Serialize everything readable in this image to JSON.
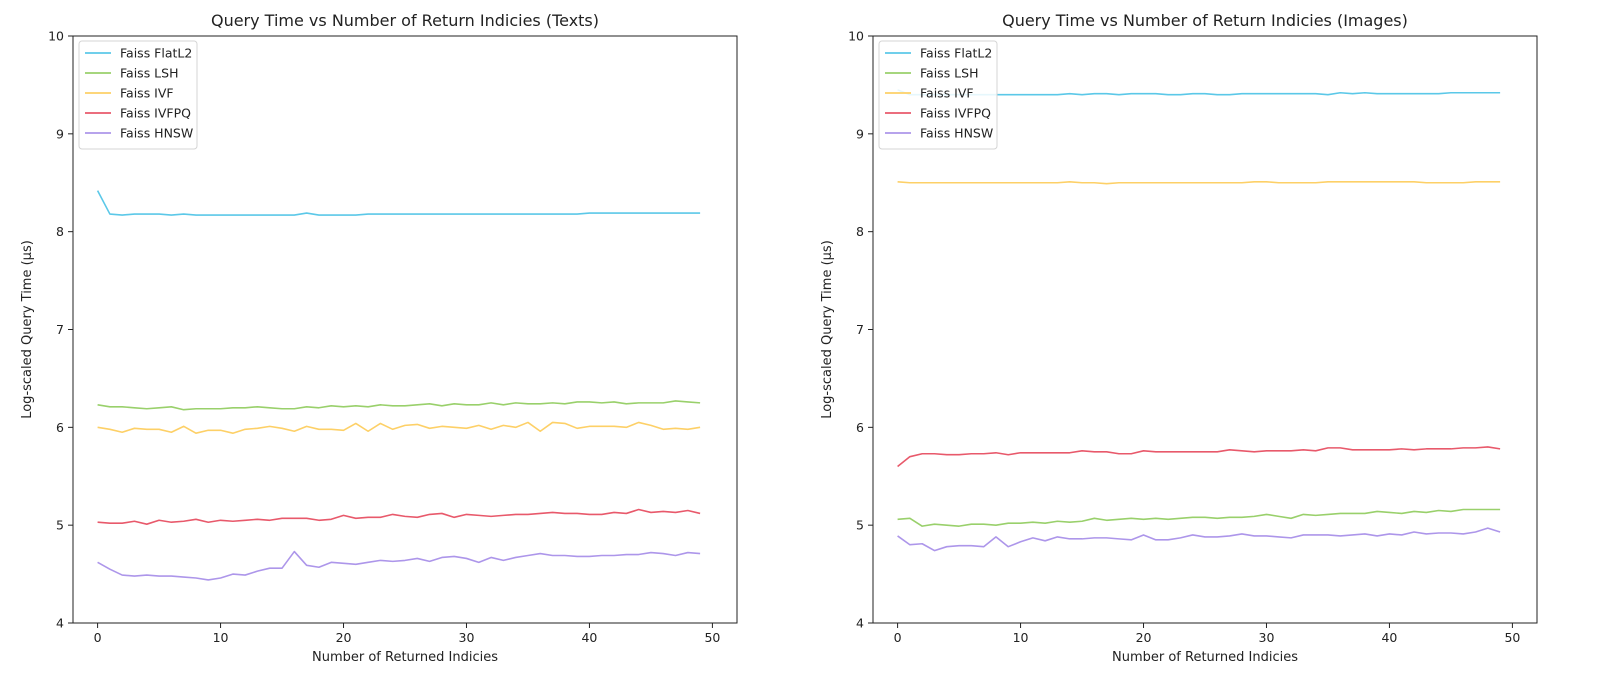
{
  "chart_data": [
    {
      "type": "line",
      "title": "Query Time vs Number of Return Indicies (Texts)",
      "xlabel": "Number of Returned Indicies",
      "ylabel": "Log-scaled Query Time (μs)",
      "xlim": [
        -2,
        52
      ],
      "ylim": [
        4,
        10
      ],
      "xticks": [
        "0",
        "10",
        "20",
        "30",
        "40",
        "50"
      ],
      "yticks": [
        "4",
        "5",
        "6",
        "7",
        "8",
        "9",
        "10"
      ],
      "grid": false,
      "legend_position": "top-left",
      "series": [
        {
          "name": "Faiss FlatL2",
          "color": "#5bc8e8",
          "values": [
            8.42,
            8.18,
            8.17,
            8.18,
            8.18,
            8.18,
            8.17,
            8.18,
            8.17,
            8.17,
            8.17,
            8.17,
            8.17,
            8.17,
            8.17,
            8.17,
            8.17,
            8.19,
            8.17,
            8.17,
            8.17,
            8.17,
            8.18,
            8.18,
            8.18,
            8.18,
            8.18,
            8.18,
            8.18,
            8.18,
            8.18,
            8.18,
            8.18,
            8.18,
            8.18,
            8.18,
            8.18,
            8.18,
            8.18,
            8.18,
            8.19,
            8.19,
            8.19,
            8.19,
            8.19,
            8.19,
            8.19,
            8.19,
            8.19,
            8.19
          ]
        },
        {
          "name": "Faiss LSH",
          "color": "#99d06b",
          "values": [
            6.23,
            6.21,
            6.21,
            6.2,
            6.19,
            6.2,
            6.21,
            6.18,
            6.19,
            6.19,
            6.19,
            6.2,
            6.2,
            6.21,
            6.2,
            6.19,
            6.19,
            6.21,
            6.2,
            6.22,
            6.21,
            6.22,
            6.21,
            6.23,
            6.22,
            6.22,
            6.23,
            6.24,
            6.22,
            6.24,
            6.23,
            6.23,
            6.25,
            6.23,
            6.25,
            6.24,
            6.24,
            6.25,
            6.24,
            6.26,
            6.26,
            6.25,
            6.26,
            6.24,
            6.25,
            6.25,
            6.25,
            6.27,
            6.26,
            6.25
          ]
        },
        {
          "name": "Faiss IVF",
          "color": "#fdd067",
          "values": [
            6.0,
            5.98,
            5.95,
            5.99,
            5.98,
            5.98,
            5.95,
            6.01,
            5.94,
            5.97,
            5.97,
            5.94,
            5.98,
            5.99,
            6.01,
            5.99,
            5.96,
            6.01,
            5.98,
            5.98,
            5.97,
            6.04,
            5.96,
            6.04,
            5.98,
            6.02,
            6.03,
            5.99,
            6.01,
            6.0,
            5.99,
            6.02,
            5.98,
            6.02,
            6.0,
            6.05,
            5.96,
            6.05,
            6.04,
            5.99,
            6.01,
            6.01,
            6.01,
            6.0,
            6.05,
            6.02,
            5.98,
            5.99,
            5.98,
            6.0
          ]
        },
        {
          "name": "Faiss IVFPQ",
          "color": "#e8596b",
          "values": [
            5.03,
            5.02,
            5.02,
            5.04,
            5.01,
            5.05,
            5.03,
            5.04,
            5.06,
            5.03,
            5.05,
            5.04,
            5.05,
            5.06,
            5.05,
            5.07,
            5.07,
            5.07,
            5.05,
            5.06,
            5.1,
            5.07,
            5.08,
            5.08,
            5.11,
            5.09,
            5.08,
            5.11,
            5.12,
            5.08,
            5.11,
            5.1,
            5.09,
            5.1,
            5.11,
            5.11,
            5.12,
            5.13,
            5.12,
            5.12,
            5.11,
            5.11,
            5.13,
            5.12,
            5.16,
            5.13,
            5.14,
            5.13,
            5.15,
            5.12
          ]
        },
        {
          "name": "Faiss HNSW",
          "color": "#ad96ea",
          "values": [
            4.62,
            4.55,
            4.49,
            4.48,
            4.49,
            4.48,
            4.48,
            4.47,
            4.46,
            4.44,
            4.46,
            4.5,
            4.49,
            4.53,
            4.56,
            4.56,
            4.73,
            4.59,
            4.57,
            4.62,
            4.61,
            4.6,
            4.62,
            4.64,
            4.63,
            4.64,
            4.66,
            4.63,
            4.67,
            4.68,
            4.66,
            4.62,
            4.67,
            4.64,
            4.67,
            4.69,
            4.71,
            4.69,
            4.69,
            4.68,
            4.68,
            4.69,
            4.69,
            4.7,
            4.7,
            4.72,
            4.71,
            4.69,
            4.72,
            4.71
          ]
        }
      ]
    },
    {
      "type": "line",
      "title": "Query Time vs Number of Return Indicies (Images)",
      "xlabel": "Number of Returned Indicies",
      "ylabel": "Log-scaled Query Time (μs)",
      "xlim": [
        -2,
        52
      ],
      "ylim": [
        4,
        10
      ],
      "xticks": [
        "0",
        "10",
        "20",
        "30",
        "40",
        "50"
      ],
      "yticks": [
        "4",
        "5",
        "6",
        "7",
        "8",
        "9",
        "10"
      ],
      "grid": false,
      "legend_position": "top-left",
      "series": [
        {
          "name": "Faiss FlatL2",
          "color": "#5bc8e8",
          "values": [
            9.45,
            9.4,
            9.4,
            9.4,
            9.4,
            9.4,
            9.4,
            9.4,
            9.4,
            9.4,
            9.4,
            9.4,
            9.4,
            9.4,
            9.41,
            9.4,
            9.41,
            9.41,
            9.4,
            9.41,
            9.41,
            9.41,
            9.4,
            9.4,
            9.41,
            9.41,
            9.4,
            9.4,
            9.41,
            9.41,
            9.41,
            9.41,
            9.41,
            9.41,
            9.41,
            9.4,
            9.42,
            9.41,
            9.42,
            9.41,
            9.41,
            9.41,
            9.41,
            9.41,
            9.41,
            9.42,
            9.42,
            9.42,
            9.42,
            9.42
          ]
        },
        {
          "name": "Faiss LSH",
          "color": "#99d06b",
          "values": [
            5.06,
            5.07,
            4.99,
            5.01,
            5.0,
            4.99,
            5.01,
            5.01,
            5.0,
            5.02,
            5.02,
            5.03,
            5.02,
            5.04,
            5.03,
            5.04,
            5.07,
            5.05,
            5.06,
            5.07,
            5.06,
            5.07,
            5.06,
            5.07,
            5.08,
            5.08,
            5.07,
            5.08,
            5.08,
            5.09,
            5.11,
            5.09,
            5.07,
            5.11,
            5.1,
            5.11,
            5.12,
            5.12,
            5.12,
            5.14,
            5.13,
            5.12,
            5.14,
            5.13,
            5.15,
            5.14,
            5.16,
            5.16,
            5.16,
            5.16
          ]
        },
        {
          "name": "Faiss IVF",
          "color": "#fdd067",
          "values": [
            8.51,
            8.5,
            8.5,
            8.5,
            8.5,
            8.5,
            8.5,
            8.5,
            8.5,
            8.5,
            8.5,
            8.5,
            8.5,
            8.5,
            8.51,
            8.5,
            8.5,
            8.49,
            8.5,
            8.5,
            8.5,
            8.5,
            8.5,
            8.5,
            8.5,
            8.5,
            8.5,
            8.5,
            8.5,
            8.51,
            8.51,
            8.5,
            8.5,
            8.5,
            8.5,
            8.51,
            8.51,
            8.51,
            8.51,
            8.51,
            8.51,
            8.51,
            8.51,
            8.5,
            8.5,
            8.5,
            8.5,
            8.51,
            8.51,
            8.51
          ]
        },
        {
          "name": "Faiss IVFPQ",
          "color": "#e8596b",
          "values": [
            5.6,
            5.7,
            5.73,
            5.73,
            5.72,
            5.72,
            5.73,
            5.73,
            5.74,
            5.72,
            5.74,
            5.74,
            5.74,
            5.74,
            5.74,
            5.76,
            5.75,
            5.75,
            5.73,
            5.73,
            5.76,
            5.75,
            5.75,
            5.75,
            5.75,
            5.75,
            5.75,
            5.77,
            5.76,
            5.75,
            5.76,
            5.76,
            5.76,
            5.77,
            5.76,
            5.79,
            5.79,
            5.77,
            5.77,
            5.77,
            5.77,
            5.78,
            5.77,
            5.78,
            5.78,
            5.78,
            5.79,
            5.79,
            5.8,
            5.78
          ]
        },
        {
          "name": "Faiss HNSW",
          "color": "#ad96ea",
          "values": [
            4.89,
            4.8,
            4.81,
            4.74,
            4.78,
            4.79,
            4.79,
            4.78,
            4.88,
            4.78,
            4.83,
            4.87,
            4.84,
            4.88,
            4.86,
            4.86,
            4.87,
            4.87,
            4.86,
            4.85,
            4.9,
            4.85,
            4.85,
            4.87,
            4.9,
            4.88,
            4.88,
            4.89,
            4.91,
            4.89,
            4.89,
            4.88,
            4.87,
            4.9,
            4.9,
            4.9,
            4.89,
            4.9,
            4.91,
            4.89,
            4.91,
            4.9,
            4.93,
            4.91,
            4.92,
            4.92,
            4.91,
            4.93,
            4.97,
            4.93
          ]
        }
      ]
    }
  ]
}
